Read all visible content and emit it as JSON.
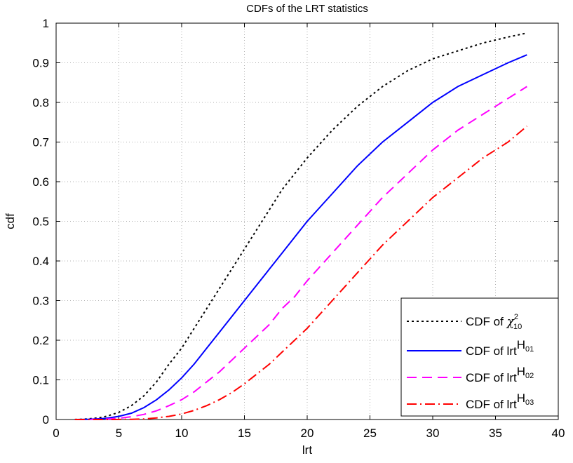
{
  "chart_data": {
    "type": "line",
    "title": "CDFs of the LRT statistics",
    "xlabel": "lrt",
    "ylabel": "cdf",
    "xlim": [
      0,
      40
    ],
    "ylim": [
      0,
      1
    ],
    "grid": true,
    "x_ticks": [
      0,
      5,
      10,
      15,
      20,
      25,
      30,
      35,
      40
    ],
    "y_ticks": [
      0,
      0.1,
      0.2,
      0.3,
      0.4,
      0.5,
      0.6,
      0.7,
      0.8,
      0.9,
      1
    ],
    "legend_position": "bottom-right",
    "series": [
      {
        "legend": {
          "prefix": "CDF of ",
          "main": "χ",
          "sup": "2",
          "sub": "10"
        },
        "color": "#000000",
        "style": "dotted",
        "x": [
          1.5,
          2,
          2.5,
          3,
          3.5,
          4,
          5,
          6,
          7,
          8,
          9,
          10,
          11,
          12,
          13,
          14,
          15,
          16,
          17,
          18,
          19,
          20,
          22,
          24,
          26,
          28,
          30,
          32,
          34,
          36,
          37.5
        ],
        "y": [
          0.0002,
          0.0006,
          0.0014,
          0.0028,
          0.0049,
          0.008,
          0.018,
          0.035,
          0.06,
          0.095,
          0.14,
          0.18,
          0.23,
          0.28,
          0.33,
          0.38,
          0.43,
          0.48,
          0.53,
          0.58,
          0.62,
          0.66,
          0.73,
          0.79,
          0.84,
          0.88,
          0.91,
          0.93,
          0.95,
          0.965,
          0.975
        ]
      },
      {
        "legend": {
          "prefix": "CDF of lrt",
          "sup": "H",
          "supsub": "01"
        },
        "color": "#0000ff",
        "style": "solid",
        "x": [
          1.5,
          2,
          2.5,
          3,
          3.5,
          4,
          5,
          6,
          7,
          8,
          9,
          10,
          11,
          12,
          13,
          14,
          15,
          16,
          17,
          18,
          19,
          20,
          22,
          24,
          26,
          28,
          30,
          32,
          34,
          36,
          37.5
        ],
        "y": [
          0.0,
          0.0002,
          0.0005,
          0.001,
          0.0019,
          0.0032,
          0.008,
          0.016,
          0.03,
          0.05,
          0.075,
          0.105,
          0.14,
          0.18,
          0.22,
          0.26,
          0.3,
          0.34,
          0.38,
          0.42,
          0.46,
          0.5,
          0.57,
          0.64,
          0.7,
          0.75,
          0.8,
          0.84,
          0.87,
          0.9,
          0.92
        ]
      },
      {
        "legend": {
          "prefix": "CDF of lrt",
          "sup": "H",
          "supsub": "02"
        },
        "color": "#ff00ff",
        "style": "dashed",
        "x": [
          1.5,
          2,
          2.5,
          3,
          3.5,
          4,
          5,
          6,
          7,
          8,
          9,
          10,
          11,
          12,
          13,
          14,
          15,
          16,
          17,
          18,
          19,
          20,
          22,
          24,
          26,
          28,
          30,
          32,
          34,
          36,
          37.5
        ],
        "y": [
          0.0,
          0.0,
          0.0001,
          0.0002,
          0.0005,
          0.001,
          0.003,
          0.007,
          0.013,
          0.022,
          0.035,
          0.05,
          0.07,
          0.095,
          0.12,
          0.15,
          0.18,
          0.21,
          0.24,
          0.28,
          0.31,
          0.35,
          0.42,
          0.49,
          0.56,
          0.62,
          0.68,
          0.73,
          0.77,
          0.81,
          0.84
        ]
      },
      {
        "legend": {
          "prefix": "CDF of lrt",
          "sup": "H",
          "supsub": "03"
        },
        "color": "#ff0000",
        "style": "dashdot",
        "x": [
          1.5,
          2,
          2.5,
          3,
          3.5,
          4,
          5,
          6,
          7,
          8,
          9,
          10,
          11,
          12,
          13,
          14,
          15,
          16,
          17,
          18,
          19,
          20,
          22,
          24,
          26,
          28,
          30,
          32,
          34,
          36,
          37.5
        ],
        "y": [
          0.0,
          0.0,
          0.0,
          0.0,
          0.0,
          0.0,
          0.0001,
          0.0005,
          0.0015,
          0.004,
          0.008,
          0.014,
          0.023,
          0.035,
          0.05,
          0.068,
          0.09,
          0.115,
          0.14,
          0.17,
          0.2,
          0.23,
          0.3,
          0.37,
          0.44,
          0.5,
          0.56,
          0.61,
          0.66,
          0.7,
          0.74
        ]
      }
    ]
  }
}
